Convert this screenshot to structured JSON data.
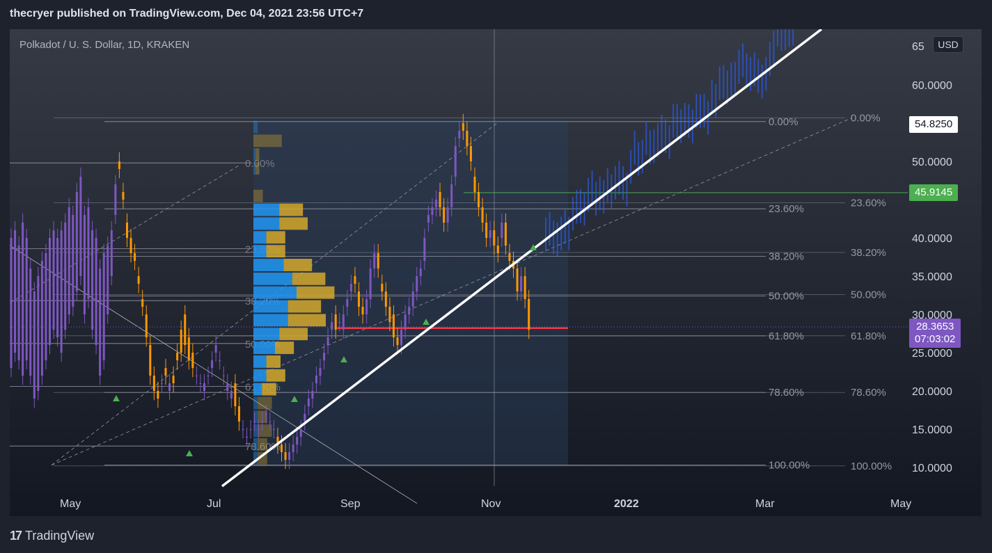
{
  "header": {
    "text": "thecryer published on TradingView.com, Dec 04, 2021 23:56 UTC+7"
  },
  "symbol": {
    "label": "Polkadot / U. S. Dollar, 1D, KRAKEN"
  },
  "currency_button": "USD",
  "footer": {
    "logo_mark": "17",
    "logo_text": "TradingView"
  },
  "price_tags": {
    "high": {
      "value": "54.8250",
      "bg": "#ffffff",
      "fg": "#131722"
    },
    "level": {
      "value": "45.9145",
      "bg": "#4caf50",
      "fg": "#ffffff"
    },
    "last": {
      "value": "28.3653",
      "countdown": "07:03:02",
      "bg": "#7e57c2",
      "fg": "#ffffff"
    }
  },
  "colors": {
    "up_candle": "#7e57c2",
    "down_candle": "#ff9800",
    "projection": "#2962ff",
    "trendline": "#ffffff",
    "support_line": "#f23645",
    "level_line": "#4caf50",
    "vp_up": "#2196f3",
    "vp_down": "#d4a82b"
  },
  "chart_data": {
    "type": "candlestick",
    "title": "Polkadot / U. S. Dollar, 1D, KRAKEN",
    "y_axis": {
      "min": 8,
      "max": 67,
      "ticks": [
        "10.0000",
        "15.0000",
        "20.0000",
        "25.0000",
        "30.0000",
        "35.0000",
        "40.0000",
        "50.0000",
        "60.0000"
      ]
    },
    "x_axis": {
      "ticks": [
        "May",
        "Jul",
        "Sep",
        "Nov",
        "2022",
        "Mar",
        "May"
      ]
    },
    "fib_left": {
      "levels": [
        "0.00%",
        "23.60%",
        "38.20%",
        "50.00%",
        "61.80%",
        "78.60%"
      ],
      "prices": [
        49.8,
        38.6,
        31.8,
        26.2,
        20.6,
        12.8
      ]
    },
    "fib_mid": {
      "levels": [
        "0.00%",
        "23.60%",
        "38.20%",
        "50.00%",
        "61.80%",
        "78.60%",
        "100.00%"
      ],
      "prices": [
        55.2,
        43.8,
        37.6,
        32.4,
        27.2,
        19.8,
        10.3
      ]
    },
    "fib_right": {
      "levels": [
        "0.00%",
        "23.60%",
        "38.20%",
        "50.00%",
        "61.80%",
        "78.60%",
        "100.00%"
      ],
      "prices": [
        55.7,
        44.6,
        38.1,
        32.6,
        27.2,
        19.8,
        10.2
      ]
    },
    "horizontal_levels": {
      "green": 45.9145,
      "red": 28.2
    },
    "trendline": {
      "start": [
        "Jun 20",
        7.7
      ],
      "end": [
        "Mar 01",
        68.5
      ]
    },
    "ohlc_path": [
      [
        23,
        40
      ],
      [
        25,
        41
      ],
      [
        24,
        39
      ],
      [
        22,
        42
      ],
      [
        24,
        40
      ],
      [
        22,
        36
      ],
      [
        19,
        33
      ],
      [
        20,
        35
      ],
      [
        22,
        37
      ],
      [
        24,
        38
      ],
      [
        26,
        40
      ],
      [
        28,
        41
      ],
      [
        27,
        40
      ],
      [
        25,
        41
      ],
      [
        28,
        42
      ],
      [
        30,
        44
      ],
      [
        31,
        43
      ],
      [
        33,
        46
      ],
      [
        35,
        48
      ],
      [
        30,
        43
      ],
      [
        32,
        44
      ],
      [
        28,
        41
      ],
      [
        26,
        40
      ],
      [
        22,
        36
      ],
      [
        24,
        38
      ],
      [
        30,
        39
      ],
      [
        35,
        41
      ],
      [
        43,
        47
      ],
      [
        50,
        49
      ],
      [
        46,
        45
      ],
      [
        42,
        40
      ],
      [
        40,
        38
      ],
      [
        38,
        37
      ],
      [
        35,
        34
      ],
      [
        32,
        31
      ],
      [
        30,
        27
      ],
      [
        26,
        22
      ],
      [
        22,
        20
      ],
      [
        20,
        19
      ],
      [
        21,
        21
      ],
      [
        23,
        22
      ],
      [
        20,
        21
      ],
      [
        22,
        21
      ],
      [
        25,
        24
      ],
      [
        28,
        25
      ],
      [
        30,
        26
      ],
      [
        27,
        24
      ],
      [
        25,
        23
      ],
      [
        22,
        22
      ],
      [
        21,
        21
      ],
      [
        20,
        21
      ],
      [
        22,
        22
      ],
      [
        23,
        24
      ],
      [
        25,
        26
      ],
      [
        24,
        24
      ],
      [
        22,
        22
      ],
      [
        20,
        21
      ],
      [
        19,
        20
      ],
      [
        21,
        18
      ],
      [
        18,
        16
      ],
      [
        15,
        15
      ],
      [
        14,
        14
      ],
      [
        15,
        15
      ],
      [
        16,
        16
      ],
      [
        15,
        15
      ],
      [
        16,
        16
      ],
      [
        17,
        17
      ],
      [
        16,
        16
      ],
      [
        15,
        15
      ],
      [
        14,
        13
      ],
      [
        13,
        12
      ],
      [
        12,
        11
      ],
      [
        11,
        12
      ],
      [
        12,
        13
      ],
      [
        13,
        14
      ],
      [
        14,
        15
      ],
      [
        16,
        17
      ],
      [
        18,
        19
      ],
      [
        19,
        20
      ],
      [
        21,
        22
      ],
      [
        22,
        23
      ],
      [
        24,
        25
      ],
      [
        26,
        27
      ],
      [
        28,
        29
      ],
      [
        30,
        28
      ],
      [
        29,
        29
      ],
      [
        28,
        30
      ],
      [
        31,
        32
      ],
      [
        33,
        34
      ],
      [
        35,
        34
      ],
      [
        33,
        31
      ],
      [
        31,
        30
      ],
      [
        30,
        32
      ],
      [
        32,
        36
      ],
      [
        36,
        38
      ],
      [
        38,
        36
      ],
      [
        34,
        33
      ],
      [
        33,
        31
      ],
      [
        31,
        29
      ],
      [
        30,
        27
      ],
      [
        27,
        26
      ],
      [
        26,
        28
      ],
      [
        28,
        30
      ],
      [
        30,
        31
      ],
      [
        31,
        33
      ],
      [
        33,
        35
      ],
      [
        35,
        36
      ],
      [
        37,
        40
      ],
      [
        42,
        43
      ],
      [
        43,
        44
      ],
      [
        44,
        45
      ],
      [
        46,
        44
      ],
      [
        44,
        42
      ],
      [
        42,
        44
      ],
      [
        44,
        47
      ],
      [
        48,
        52
      ],
      [
        53,
        54
      ],
      [
        55,
        54
      ],
      [
        54,
        52
      ],
      [
        52,
        50
      ],
      [
        48,
        46
      ],
      [
        46,
        44
      ],
      [
        44,
        42
      ],
      [
        42,
        40
      ],
      [
        40,
        41
      ],
      [
        41,
        39
      ],
      [
        39,
        38
      ],
      [
        40,
        42
      ],
      [
        42,
        39
      ],
      [
        38,
        37
      ],
      [
        37,
        36
      ],
      [
        36,
        33
      ],
      [
        33,
        35
      ],
      [
        35,
        32
      ],
      [
        32,
        28
      ]
    ],
    "projection_note": "Projected price path (blue) from Nov 2021 to Mar 2022"
  }
}
